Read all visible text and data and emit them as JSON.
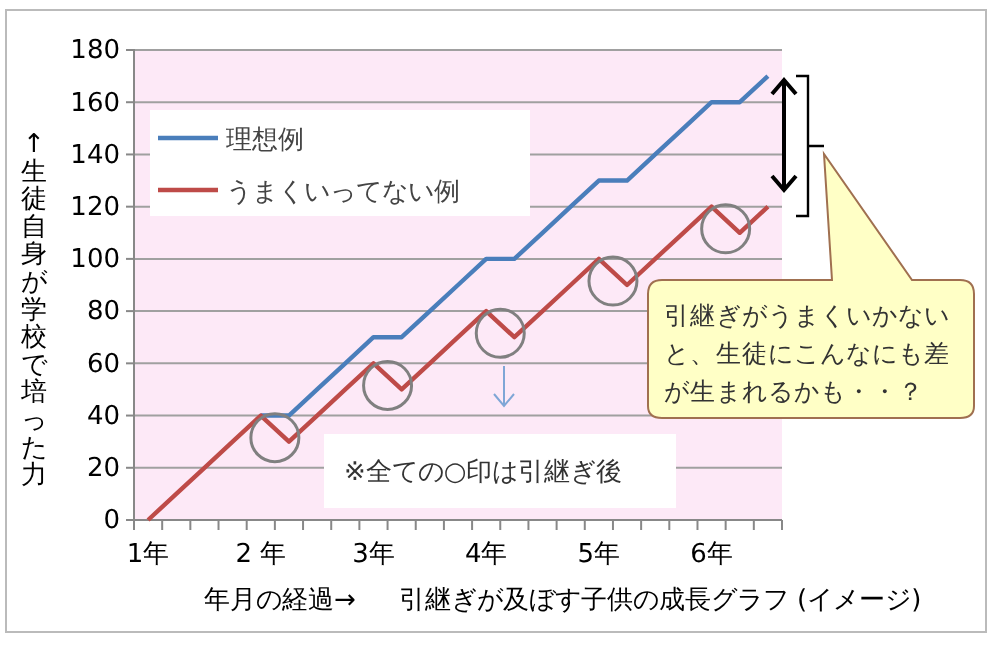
{
  "chart_data": {
    "type": "line",
    "title": "引継ぎが及ぼす子供の成長グラフ (イメージ)",
    "xlabel": "年月の経過→",
    "ylabel": "↑生徒自身が学校で培った力",
    "categories": [
      "1年",
      null,
      null,
      null,
      "2 年",
      null,
      null,
      null,
      "3年",
      null,
      null,
      null,
      "4年",
      null,
      null,
      null,
      "5年",
      null,
      null,
      null,
      "6年",
      null,
      null
    ],
    "series": [
      {
        "name": "理想例",
        "color": "#4a7ebb",
        "values": [
          null,
          null,
          null,
          null,
          40,
          40,
          50,
          60,
          70,
          70,
          80,
          90,
          100,
          100,
          110,
          120,
          130,
          130,
          140,
          150,
          160,
          160,
          170
        ]
      },
      {
        "name": "うまくいってない例",
        "color": "#be4b48",
        "values": [
          0,
          10,
          20,
          30,
          40,
          30,
          40,
          50,
          60,
          50,
          60,
          70,
          80,
          70,
          80,
          90,
          100,
          90,
          100,
          110,
          120,
          110,
          120
        ]
      }
    ],
    "ylim": [
      0,
      180
    ],
    "yticks": [
      0,
      20,
      40,
      60,
      80,
      100,
      120,
      140,
      160,
      180
    ],
    "grid": "y",
    "legend": "top left",
    "marker": "none",
    "line_style": "solid",
    "annotations": [
      "※全ての○印は引継ぎ後",
      "引継ぎがうまくいかないと、生徒にこんなにも差が生まれるかも・・？"
    ]
  }
}
